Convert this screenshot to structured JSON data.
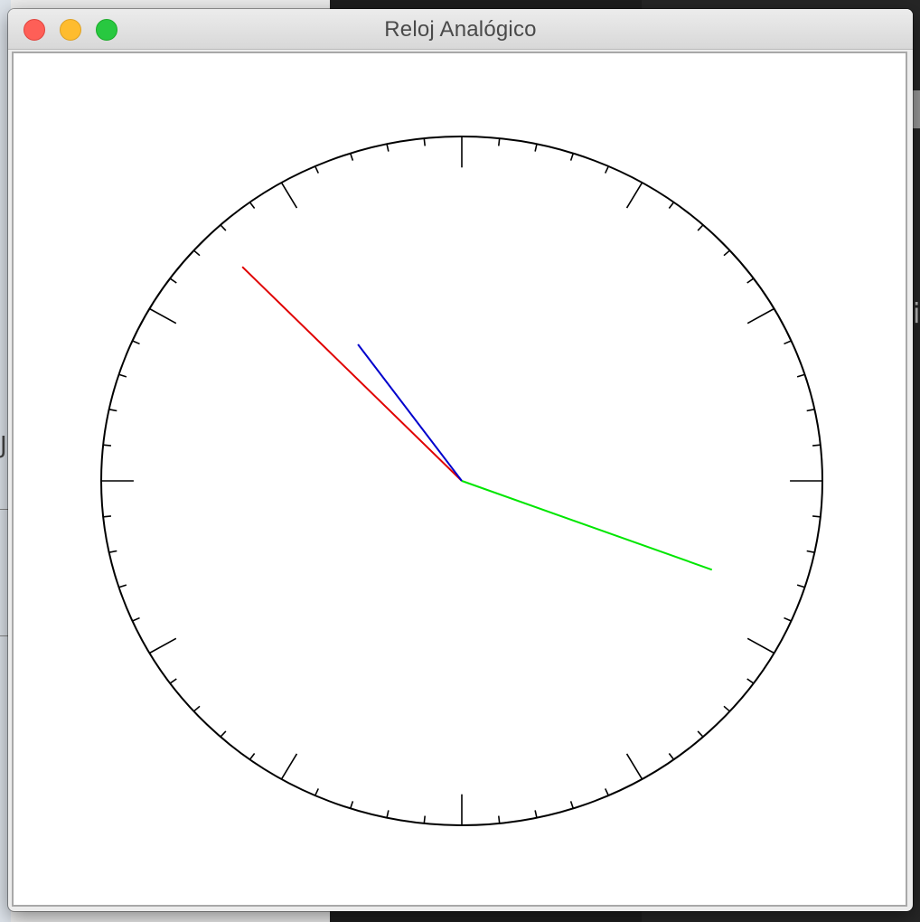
{
  "window": {
    "title": "Reloj Analógico"
  },
  "controls": {
    "close": "close",
    "minimize": "minimize",
    "zoom": "zoom"
  },
  "clock": {
    "hour_hand_color": "#0000cc",
    "minute_hand_color": "#e00000",
    "second_hand_color": "#00e600",
    "hour_value": 10.8,
    "minute_value": 52.6,
    "second_value": 18.4,
    "face_color": "#000000",
    "tick_count": 60
  }
}
